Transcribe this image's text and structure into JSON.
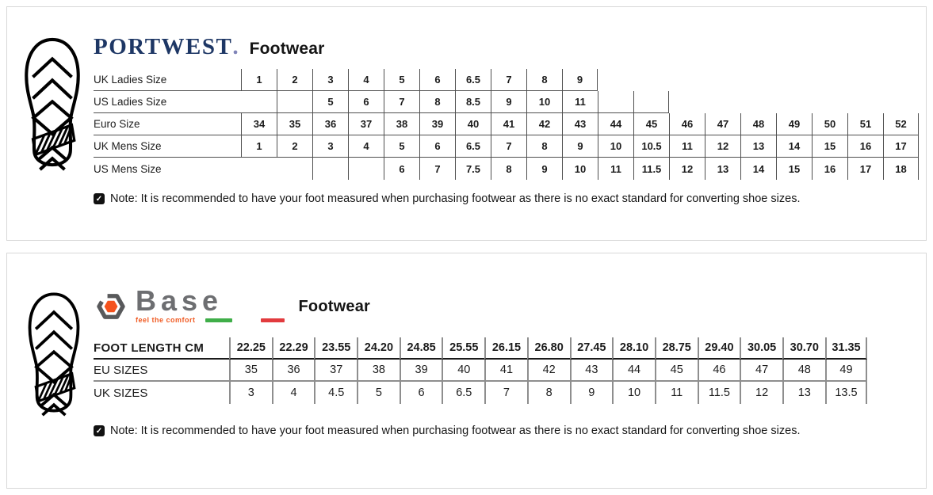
{
  "portwest": {
    "brand": "PORTWEST",
    "brand_dot": ".",
    "title": "Footwear",
    "note": "Note: It is recommended to have your foot measured when purchasing footwear as there is no exact standard for converting shoe sizes.",
    "note_icon_glyph": "✓",
    "table": {
      "rows": [
        {
          "label": "UK Ladies Size",
          "border_start": 0,
          "border_end": 9,
          "bottom_end": 9,
          "values": [
            "1",
            "2",
            "3",
            "4",
            "5",
            "6",
            "6.5",
            "7",
            "8",
            "9",
            "",
            "",
            "",
            "",
            "",
            "",
            "",
            "",
            ""
          ]
        },
        {
          "label": "US Ladies Size",
          "border_start": 1,
          "border_end": 11,
          "bottom_end": 11,
          "values": [
            "",
            "",
            "5",
            "6",
            "7",
            "8",
            "8.5",
            "9",
            "10",
            "11",
            "",
            "",
            "",
            "",
            "",
            "",
            "",
            "",
            ""
          ]
        },
        {
          "label": "Euro Size",
          "border_start": 0,
          "border_end": 18,
          "bottom_end": 18,
          "values": [
            "34",
            "35",
            "36",
            "37",
            "38",
            "39",
            "40",
            "41",
            "42",
            "43",
            "44",
            "45",
            "46",
            "47",
            "48",
            "49",
            "50",
            "51",
            "52"
          ]
        },
        {
          "label": "UK Mens Size",
          "border_start": 0,
          "border_end": 18,
          "bottom_end": 18,
          "values": [
            "1",
            "2",
            "3",
            "4",
            "5",
            "6",
            "6.5",
            "7",
            "8",
            "9",
            "10",
            "10.5",
            "11",
            "12",
            "13",
            "14",
            "15",
            "16",
            "17"
          ]
        },
        {
          "label": "US Mens Size",
          "border_start": 2,
          "border_end": 18,
          "bottom_end": -1,
          "values": [
            "",
            "",
            "",
            "",
            "6",
            "7",
            "7.5",
            "8",
            "9",
            "10",
            "11",
            "11.5",
            "12",
            "13",
            "14",
            "15",
            "16",
            "17",
            "18"
          ]
        }
      ]
    }
  },
  "base": {
    "brand": "Base",
    "tagline": "feel the comfort",
    "title": "Footwear",
    "note": "Note: It is recommended to have your foot measured when purchasing footwear as there is no exact standard for converting shoe sizes.",
    "note_icon_glyph": "✓",
    "table": {
      "header_label": "FOOT LENGTH CM",
      "header_values": [
        "22.25",
        "22.29",
        "23.55",
        "24.20",
        "24.85",
        "25.55",
        "26.15",
        "26.80",
        "27.45",
        "28.10",
        "28.75",
        "29.40",
        "30.05",
        "30.70",
        "31.35"
      ],
      "rows": [
        {
          "label": "EU SIZES",
          "values": [
            "35",
            "36",
            "37",
            "38",
            "39",
            "40",
            "41",
            "42",
            "43",
            "44",
            "45",
            "46",
            "47",
            "48",
            "49"
          ]
        },
        {
          "label": "UK SIZES",
          "values": [
            "3",
            "4",
            "4.5",
            "5",
            "6",
            "6.5",
            "7",
            "8",
            "9",
            "10",
            "11",
            "11.5",
            "12",
            "13",
            "13.5"
          ]
        }
      ]
    }
  },
  "icons": {
    "panel_icon": "boot-print-icon",
    "note_icon": "note-checkbox-icon",
    "base_logo_icon": "hex-nut-icon",
    "tagline_dashes": [
      "green-dash-icon",
      "red-dash-icon"
    ]
  },
  "colors": {
    "portwest_navy": "#1e3765",
    "base_gray": "#6d6e71",
    "base_orange": "#f4521d",
    "tagline_green": "#3fae49",
    "tagline_red": "#e23b3e",
    "table_line_gray": "#4f4f4f",
    "base_line_gray": "#8e8e8e",
    "panel_border": "#d8d8d8"
  }
}
